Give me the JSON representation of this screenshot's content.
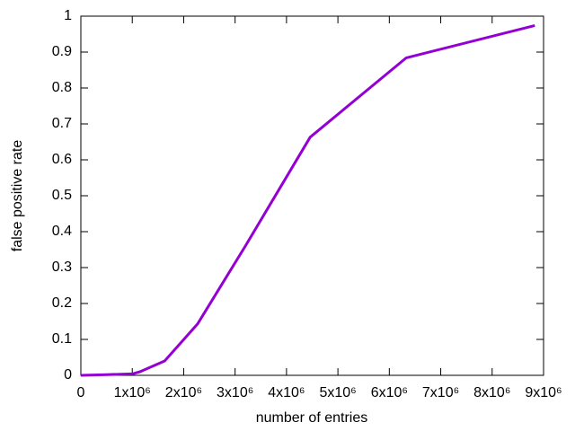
{
  "chart_data": {
    "type": "line",
    "xlabel": "number of entries",
    "ylabel": "false positive rate",
    "x": [
      0,
      500000,
      1000000,
      1150000,
      1630000,
      2270000,
      3200000,
      4460000,
      6330000,
      8830000
    ],
    "series": [
      {
        "color": "#9400d3",
        "values": [
          0,
          0.002,
          0.004,
          0.01,
          0.04,
          0.143,
          0.36,
          0.663,
          0.884,
          0.974
        ]
      }
    ],
    "xlim": [
      0,
      9000000
    ],
    "xticks": [
      0,
      {
        "value": 1000000,
        "label": "1x10⁶"
      },
      {
        "value": 2000000,
        "label": "2x10⁶"
      },
      {
        "value": 3000000,
        "label": "3x10⁶"
      },
      {
        "value": 4000000,
        "label": "4x10⁶"
      },
      {
        "value": 5000000,
        "label": "5x10⁶"
      },
      {
        "value": 6000000,
        "label": "6x10⁶"
      },
      {
        "value": 7000000,
        "label": "7x10⁶"
      },
      {
        "value": 8000000,
        "label": "8x10⁶"
      },
      {
        "value": 9000000,
        "label": "9x10⁶"
      }
    ],
    "ylim": [
      0,
      1
    ],
    "yticks": [
      0,
      0.1,
      0.2,
      0.3,
      0.4,
      0.5,
      0.6,
      0.7,
      0.8,
      0.9,
      1
    ]
  }
}
